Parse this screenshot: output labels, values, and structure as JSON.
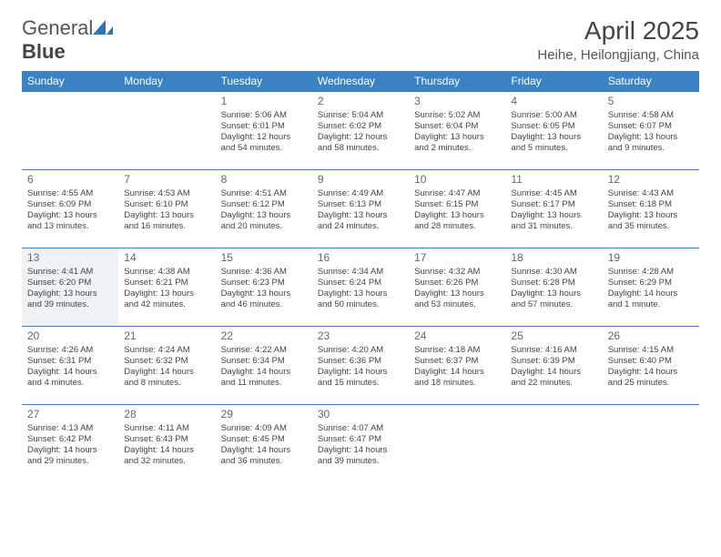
{
  "brand": {
    "part1": "General",
    "part2": "Blue"
  },
  "title": "April 2025",
  "location": "Heihe, Heilongjiang, China",
  "colors": {
    "header_bg": "#3b82c4",
    "header_text": "#ffffff",
    "border": "#3b82c4",
    "text": "#444444",
    "highlight_bg": "#eef2f5"
  },
  "day_headers": [
    "Sunday",
    "Monday",
    "Tuesday",
    "Wednesday",
    "Thursday",
    "Friday",
    "Saturday"
  ],
  "weeks": [
    [
      {
        "day": "",
        "sunrise": "",
        "sunset": "",
        "daylight": ""
      },
      {
        "day": "",
        "sunrise": "",
        "sunset": "",
        "daylight": ""
      },
      {
        "day": "1",
        "sunrise": "Sunrise: 5:06 AM",
        "sunset": "Sunset: 6:01 PM",
        "daylight": "Daylight: 12 hours and 54 minutes."
      },
      {
        "day": "2",
        "sunrise": "Sunrise: 5:04 AM",
        "sunset": "Sunset: 6:02 PM",
        "daylight": "Daylight: 12 hours and 58 minutes."
      },
      {
        "day": "3",
        "sunrise": "Sunrise: 5:02 AM",
        "sunset": "Sunset: 6:04 PM",
        "daylight": "Daylight: 13 hours and 2 minutes."
      },
      {
        "day": "4",
        "sunrise": "Sunrise: 5:00 AM",
        "sunset": "Sunset: 6:05 PM",
        "daylight": "Daylight: 13 hours and 5 minutes."
      },
      {
        "day": "5",
        "sunrise": "Sunrise: 4:58 AM",
        "sunset": "Sunset: 6:07 PM",
        "daylight": "Daylight: 13 hours and 9 minutes."
      }
    ],
    [
      {
        "day": "6",
        "sunrise": "Sunrise: 4:55 AM",
        "sunset": "Sunset: 6:09 PM",
        "daylight": "Daylight: 13 hours and 13 minutes."
      },
      {
        "day": "7",
        "sunrise": "Sunrise: 4:53 AM",
        "sunset": "Sunset: 6:10 PM",
        "daylight": "Daylight: 13 hours and 16 minutes."
      },
      {
        "day": "8",
        "sunrise": "Sunrise: 4:51 AM",
        "sunset": "Sunset: 6:12 PM",
        "daylight": "Daylight: 13 hours and 20 minutes."
      },
      {
        "day": "9",
        "sunrise": "Sunrise: 4:49 AM",
        "sunset": "Sunset: 6:13 PM",
        "daylight": "Daylight: 13 hours and 24 minutes."
      },
      {
        "day": "10",
        "sunrise": "Sunrise: 4:47 AM",
        "sunset": "Sunset: 6:15 PM",
        "daylight": "Daylight: 13 hours and 28 minutes."
      },
      {
        "day": "11",
        "sunrise": "Sunrise: 4:45 AM",
        "sunset": "Sunset: 6:17 PM",
        "daylight": "Daylight: 13 hours and 31 minutes."
      },
      {
        "day": "12",
        "sunrise": "Sunrise: 4:43 AM",
        "sunset": "Sunset: 6:18 PM",
        "daylight": "Daylight: 13 hours and 35 minutes."
      }
    ],
    [
      {
        "day": "13",
        "sunrise": "Sunrise: 4:41 AM",
        "sunset": "Sunset: 6:20 PM",
        "daylight": "Daylight: 13 hours and 39 minutes.",
        "hl": true
      },
      {
        "day": "14",
        "sunrise": "Sunrise: 4:38 AM",
        "sunset": "Sunset: 6:21 PM",
        "daylight": "Daylight: 13 hours and 42 minutes."
      },
      {
        "day": "15",
        "sunrise": "Sunrise: 4:36 AM",
        "sunset": "Sunset: 6:23 PM",
        "daylight": "Daylight: 13 hours and 46 minutes."
      },
      {
        "day": "16",
        "sunrise": "Sunrise: 4:34 AM",
        "sunset": "Sunset: 6:24 PM",
        "daylight": "Daylight: 13 hours and 50 minutes."
      },
      {
        "day": "17",
        "sunrise": "Sunrise: 4:32 AM",
        "sunset": "Sunset: 6:26 PM",
        "daylight": "Daylight: 13 hours and 53 minutes."
      },
      {
        "day": "18",
        "sunrise": "Sunrise: 4:30 AM",
        "sunset": "Sunset: 6:28 PM",
        "daylight": "Daylight: 13 hours and 57 minutes."
      },
      {
        "day": "19",
        "sunrise": "Sunrise: 4:28 AM",
        "sunset": "Sunset: 6:29 PM",
        "daylight": "Daylight: 14 hours and 1 minute."
      }
    ],
    [
      {
        "day": "20",
        "sunrise": "Sunrise: 4:26 AM",
        "sunset": "Sunset: 6:31 PM",
        "daylight": "Daylight: 14 hours and 4 minutes."
      },
      {
        "day": "21",
        "sunrise": "Sunrise: 4:24 AM",
        "sunset": "Sunset: 6:32 PM",
        "daylight": "Daylight: 14 hours and 8 minutes."
      },
      {
        "day": "22",
        "sunrise": "Sunrise: 4:22 AM",
        "sunset": "Sunset: 6:34 PM",
        "daylight": "Daylight: 14 hours and 11 minutes."
      },
      {
        "day": "23",
        "sunrise": "Sunrise: 4:20 AM",
        "sunset": "Sunset: 6:36 PM",
        "daylight": "Daylight: 14 hours and 15 minutes."
      },
      {
        "day": "24",
        "sunrise": "Sunrise: 4:18 AM",
        "sunset": "Sunset: 6:37 PM",
        "daylight": "Daylight: 14 hours and 18 minutes."
      },
      {
        "day": "25",
        "sunrise": "Sunrise: 4:16 AM",
        "sunset": "Sunset: 6:39 PM",
        "daylight": "Daylight: 14 hours and 22 minutes."
      },
      {
        "day": "26",
        "sunrise": "Sunrise: 4:15 AM",
        "sunset": "Sunset: 6:40 PM",
        "daylight": "Daylight: 14 hours and 25 minutes."
      }
    ],
    [
      {
        "day": "27",
        "sunrise": "Sunrise: 4:13 AM",
        "sunset": "Sunset: 6:42 PM",
        "daylight": "Daylight: 14 hours and 29 minutes."
      },
      {
        "day": "28",
        "sunrise": "Sunrise: 4:11 AM",
        "sunset": "Sunset: 6:43 PM",
        "daylight": "Daylight: 14 hours and 32 minutes."
      },
      {
        "day": "29",
        "sunrise": "Sunrise: 4:09 AM",
        "sunset": "Sunset: 6:45 PM",
        "daylight": "Daylight: 14 hours and 36 minutes."
      },
      {
        "day": "30",
        "sunrise": "Sunrise: 4:07 AM",
        "sunset": "Sunset: 6:47 PM",
        "daylight": "Daylight: 14 hours and 39 minutes."
      },
      {
        "day": "",
        "sunrise": "",
        "sunset": "",
        "daylight": ""
      },
      {
        "day": "",
        "sunrise": "",
        "sunset": "",
        "daylight": ""
      },
      {
        "day": "",
        "sunrise": "",
        "sunset": "",
        "daylight": ""
      }
    ]
  ]
}
